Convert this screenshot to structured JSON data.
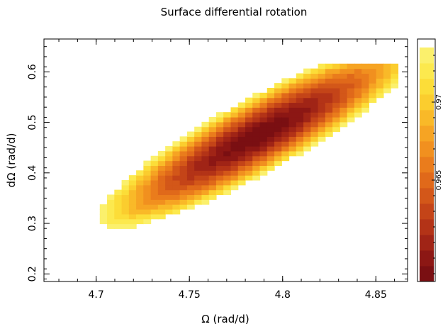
{
  "chart_data": {
    "type": "heatmap",
    "title": "Surface differential rotation",
    "xlabel": "Ω (rad/d)",
    "ylabel": "dΩ (rad/d)",
    "xlim": [
      4.672,
      4.867
    ],
    "ylim": [
      0.185,
      0.665
    ],
    "x_ticks": [
      4.7,
      4.75,
      4.8,
      4.85
    ],
    "x_tick_labels": [
      "4.7",
      "4.75",
      "4.8",
      "4.85"
    ],
    "y_ticks": [
      0.2,
      0.3,
      0.4,
      0.5,
      0.6
    ],
    "y_tick_labels": [
      "0.2",
      "0.3",
      "0.4",
      "0.5",
      "0.6"
    ],
    "grid": false,
    "colorbar": {
      "range": [
        0.9585,
        0.9735
      ],
      "tick_values": [
        0.965,
        0.97
      ],
      "tick_labels": [
        "0.965",
        "0.97"
      ],
      "colors": [
        "#7a0f12",
        "#8c1714",
        "#a02416",
        "#b33317",
        "#c44418",
        "#d35719",
        "#e0691a",
        "#ea7c1c",
        "#f1901f",
        "#f6a423",
        "#f9b928",
        "#fbcd2e",
        "#fcdd38",
        "#fce94e",
        "#fbf06c"
      ]
    },
    "surface": {
      "peak": [
        4.787,
        0.475
      ],
      "peak_value": 0.9585,
      "edge_value": 0.9735,
      "axis_direction": [
        0.155,
        0.36
      ],
      "major_half_length": 0.2,
      "minor_half_width": 0.0355
    }
  }
}
